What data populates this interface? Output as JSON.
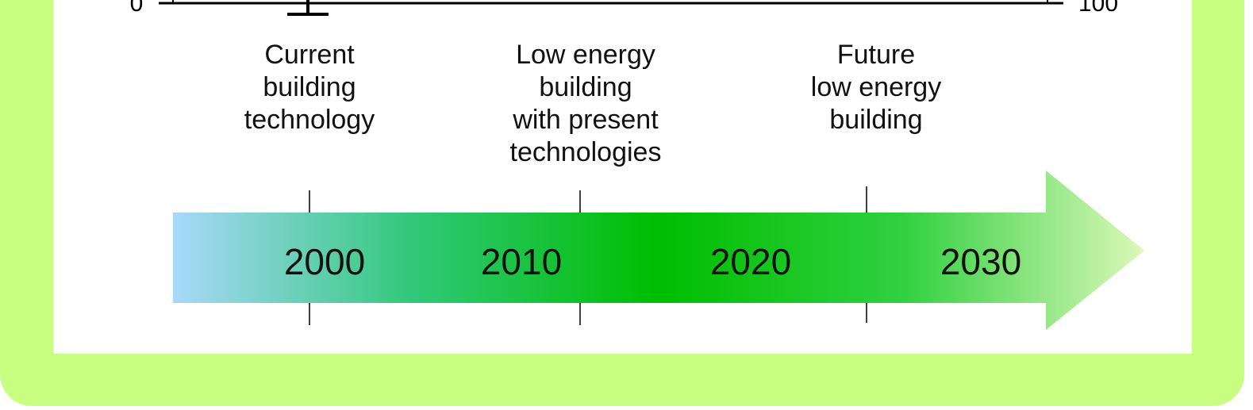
{
  "axis": {
    "min_label": "0",
    "max_label": "100"
  },
  "milestones": [
    {
      "lines": [
        "Current",
        "building",
        "technology"
      ]
    },
    {
      "lines": [
        "Low energy",
        "building",
        "with present",
        "technologies"
      ]
    },
    {
      "lines": [
        "Future",
        "low energy",
        "building"
      ]
    }
  ],
  "timeline": {
    "years": [
      "2000",
      "2010",
      "2020",
      "2030"
    ]
  }
}
